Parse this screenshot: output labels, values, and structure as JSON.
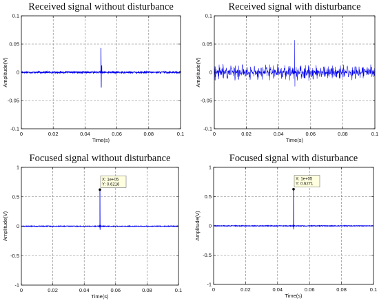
{
  "chart_data": [
    {
      "type": "line",
      "title": "Received signal without disturbance",
      "xlabel": "Time(s)",
      "ylabel": "Amplitude(V)",
      "xlim": [
        0,
        0.1
      ],
      "ylim": [
        -0.1,
        0.1
      ],
      "xticks": [
        "0",
        "0.02",
        "0.04",
        "0.06",
        "0.08",
        "0.1"
      ],
      "yticks": [
        "-0.1",
        "-0.05",
        "0",
        "0.05",
        "0.1"
      ],
      "grid": true,
      "series_color": "#0000ee",
      "noise_amplitude": 0.0015,
      "peaks": [
        {
          "x": 0.05,
          "y": 0.043
        },
        {
          "x": 0.0502,
          "y": -0.027
        },
        {
          "x": 0.0505,
          "y": 0.012
        }
      ]
    },
    {
      "type": "line",
      "title": "Received signal with disturbance",
      "xlabel": "Time(s)",
      "ylabel": "Amplitude(V)",
      "xlim": [
        0,
        0.1
      ],
      "ylim": [
        -0.1,
        0.1
      ],
      "xticks": [
        "0",
        "0.02",
        "0.04",
        "0.06",
        "0.08",
        "0.1"
      ],
      "yticks": [
        "-0.1",
        "-0.05",
        "0",
        "0.05",
        "0.1"
      ],
      "grid": true,
      "series_color": "#0000ee",
      "noise_amplitude": 0.015,
      "peaks": [
        {
          "x": 0.05,
          "y": 0.057
        },
        {
          "x": 0.0502,
          "y": -0.025
        }
      ]
    },
    {
      "type": "line",
      "title": "Focused signal without disturbance",
      "xlabel": "Time(s)",
      "ylabel": "Amplitude(V)",
      "xlim": [
        0,
        0.1
      ],
      "ylim": [
        -1,
        1
      ],
      "xticks": [
        "0",
        "0.02",
        "0.04",
        "0.06",
        "0.08",
        "0.1"
      ],
      "yticks": [
        "-1",
        "-0.5",
        "0",
        "0.5",
        "1"
      ],
      "grid": true,
      "series_color": "#0000ee",
      "noise_amplitude": 0.006,
      "peaks": [
        {
          "x": 0.05,
          "y": 0.6216
        },
        {
          "x": 0.0501,
          "y": -0.06
        }
      ],
      "datatip": {
        "x": 0.05,
        "y": 0.6216,
        "line1": "X: 1e+05",
        "line2": "Y: 0.6216"
      }
    },
    {
      "type": "line",
      "title": "Focused signal with disturbance",
      "xlabel": "Time(s)",
      "ylabel": "Amplitude(V)",
      "xlim": [
        0,
        0.1
      ],
      "ylim": [
        -1,
        1
      ],
      "xticks": [
        "0",
        "0.02",
        "0.04",
        "0.06",
        "0.08",
        "0.1"
      ],
      "yticks": [
        "-1",
        "-0.5",
        "0",
        "0.5",
        "1"
      ],
      "grid": true,
      "series_color": "#0000ee",
      "noise_amplitude": 0.006,
      "peaks": [
        {
          "x": 0.05,
          "y": 0.6271
        },
        {
          "x": 0.0501,
          "y": -0.06
        }
      ],
      "datatip": {
        "x": 0.05,
        "y": 0.6271,
        "line1": "X: 1e+05",
        "line2": "Y: 0.6271"
      }
    }
  ]
}
